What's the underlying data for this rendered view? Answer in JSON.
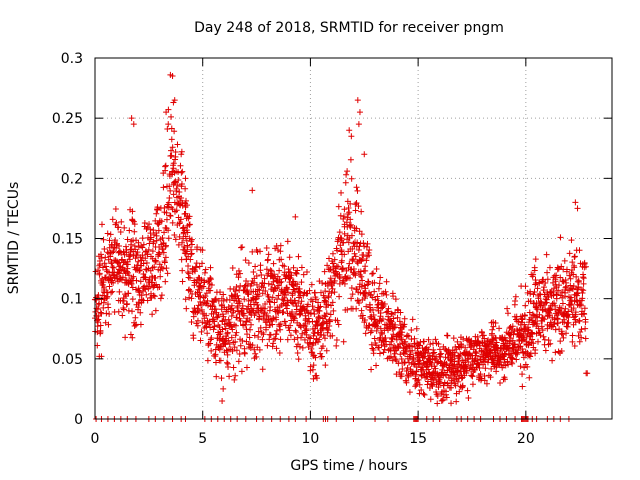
{
  "chart_data": {
    "type": "scatter",
    "title": "Day 248 of 2018, SRMTID for receiver pngm",
    "xlabel": "GPS time / hours",
    "ylabel": "SRMTID / TECUs",
    "xlim": [
      0,
      24
    ],
    "ylim": [
      0,
      0.3
    ],
    "grid": true,
    "x_ticks": [
      0,
      5,
      10,
      15,
      20
    ],
    "x_tick_labels": [
      "0",
      "5",
      "10",
      "15",
      "20"
    ],
    "y_ticks": [
      0,
      0.05,
      0.1,
      0.15,
      0.2,
      0.25,
      0.3
    ],
    "y_tick_labels": [
      "0",
      "0.05",
      "0.1",
      "0.15",
      "0.2",
      "0.25",
      "0.3"
    ],
    "marker": "+",
    "marker_color": "#e00000",
    "series": [
      {
        "name": "SRMTID",
        "color": "#e00000",
        "envelope": [
          {
            "hour": 0.0,
            "median": 0.09,
            "spread": 0.03
          },
          {
            "hour": 0.5,
            "median": 0.12,
            "spread": 0.035
          },
          {
            "hour": 1.0,
            "median": 0.13,
            "spread": 0.035
          },
          {
            "hour": 1.5,
            "median": 0.12,
            "spread": 0.035
          },
          {
            "hour": 1.8,
            "median": 0.13,
            "spread": 0.04
          },
          {
            "hour": 2.0,
            "median": 0.11,
            "spread": 0.03
          },
          {
            "hour": 2.5,
            "median": 0.13,
            "spread": 0.035
          },
          {
            "hour": 3.0,
            "median": 0.14,
            "spread": 0.04
          },
          {
            "hour": 3.5,
            "median": 0.2,
            "spread": 0.05
          },
          {
            "hour": 4.0,
            "median": 0.17,
            "spread": 0.04
          },
          {
            "hour": 4.3,
            "median": 0.14,
            "spread": 0.035
          },
          {
            "hour": 4.6,
            "median": 0.11,
            "spread": 0.03
          },
          {
            "hour": 5.0,
            "median": 0.1,
            "spread": 0.03
          },
          {
            "hour": 5.5,
            "median": 0.08,
            "spread": 0.03
          },
          {
            "hour": 6.0,
            "median": 0.075,
            "spread": 0.03
          },
          {
            "hour": 7.0,
            "median": 0.09,
            "spread": 0.035
          },
          {
            "hour": 8.0,
            "median": 0.095,
            "spread": 0.035
          },
          {
            "hour": 9.0,
            "median": 0.1,
            "spread": 0.035
          },
          {
            "hour": 9.6,
            "median": 0.09,
            "spread": 0.035
          },
          {
            "hour": 10.0,
            "median": 0.07,
            "spread": 0.03
          },
          {
            "hour": 10.6,
            "median": 0.08,
            "spread": 0.03
          },
          {
            "hour": 11.0,
            "median": 0.1,
            "spread": 0.03
          },
          {
            "hour": 11.5,
            "median": 0.14,
            "spread": 0.045
          },
          {
            "hour": 12.0,
            "median": 0.15,
            "spread": 0.05
          },
          {
            "hour": 12.5,
            "median": 0.11,
            "spread": 0.04
          },
          {
            "hour": 13.0,
            "median": 0.085,
            "spread": 0.03
          },
          {
            "hour": 14.0,
            "median": 0.07,
            "spread": 0.025
          },
          {
            "hour": 14.5,
            "median": 0.05,
            "spread": 0.02
          },
          {
            "hour": 15.0,
            "median": 0.05,
            "spread": 0.02
          },
          {
            "hour": 16.0,
            "median": 0.04,
            "spread": 0.02
          },
          {
            "hour": 17.0,
            "median": 0.045,
            "spread": 0.02
          },
          {
            "hour": 18.0,
            "median": 0.055,
            "spread": 0.02
          },
          {
            "hour": 19.0,
            "median": 0.055,
            "spread": 0.02
          },
          {
            "hour": 19.1,
            "median": 0.06,
            "spread": 0.02
          },
          {
            "hour": 20.0,
            "median": 0.07,
            "spread": 0.03
          },
          {
            "hour": 20.5,
            "median": 0.09,
            "spread": 0.03
          },
          {
            "hour": 21.0,
            "median": 0.09,
            "spread": 0.03
          },
          {
            "hour": 22.0,
            "median": 0.1,
            "spread": 0.035
          },
          {
            "hour": 22.8,
            "median": 0.1,
            "spread": 0.035
          }
        ],
        "highlights": [
          {
            "x": 1.7,
            "y": 0.25
          },
          {
            "x": 1.8,
            "y": 0.245
          },
          {
            "x": 3.5,
            "y": 0.286
          },
          {
            "x": 3.6,
            "y": 0.285
          },
          {
            "x": 3.7,
            "y": 0.265
          },
          {
            "x": 3.3,
            "y": 0.255
          },
          {
            "x": 3.4,
            "y": 0.245
          },
          {
            "x": 4.0,
            "y": 0.22
          },
          {
            "x": 4.2,
            "y": 0.2
          },
          {
            "x": 7.3,
            "y": 0.19
          },
          {
            "x": 9.3,
            "y": 0.168
          },
          {
            "x": 12.2,
            "y": 0.265
          },
          {
            "x": 12.3,
            "y": 0.255
          },
          {
            "x": 12.25,
            "y": 0.245
          },
          {
            "x": 11.8,
            "y": 0.24
          },
          {
            "x": 11.9,
            "y": 0.235
          },
          {
            "x": 12.5,
            "y": 0.22
          },
          {
            "x": 22.3,
            "y": 0.18
          },
          {
            "x": 22.4,
            "y": 0.175
          },
          {
            "x": 4.3,
            "y": 0.155
          },
          {
            "x": 5.9,
            "y": 0.015
          },
          {
            "x": 5.95,
            "y": 0.025
          },
          {
            "x": 0.2,
            "y": 0.052
          },
          {
            "x": 0.3,
            "y": 0.052
          },
          {
            "x": 22.8,
            "y": 0.038
          },
          {
            "x": 22.85,
            "y": 0.038
          },
          {
            "x": 15.3,
            "y": 0.02
          },
          {
            "x": 16.2,
            "y": 0.02
          }
        ],
        "zero_markers_hours": [
          0.05,
          0.3,
          0.6,
          0.9,
          1.2,
          1.5,
          1.9,
          2.5,
          2.8,
          3.2,
          3.6,
          4.0,
          4.2,
          5.1,
          5.4,
          5.7,
          6.0,
          6.3,
          6.6,
          7.0,
          7.5,
          7.8,
          8.2,
          8.6,
          9.0,
          9.3,
          9.8,
          10.6,
          10.7,
          10.8,
          11.2,
          12.0,
          13.0,
          13.6,
          14.8,
          14.85,
          14.9,
          14.95,
          15.0,
          15.4,
          15.7,
          16.0,
          16.8,
          17.0,
          17.3,
          17.6,
          17.9,
          18.5,
          18.8,
          19.1,
          19.5,
          19.8,
          19.85,
          19.9,
          19.95,
          20.0,
          20.05,
          20.1,
          20.3,
          20.5,
          21.0,
          21.3,
          21.6,
          22.0
        ]
      }
    ]
  }
}
